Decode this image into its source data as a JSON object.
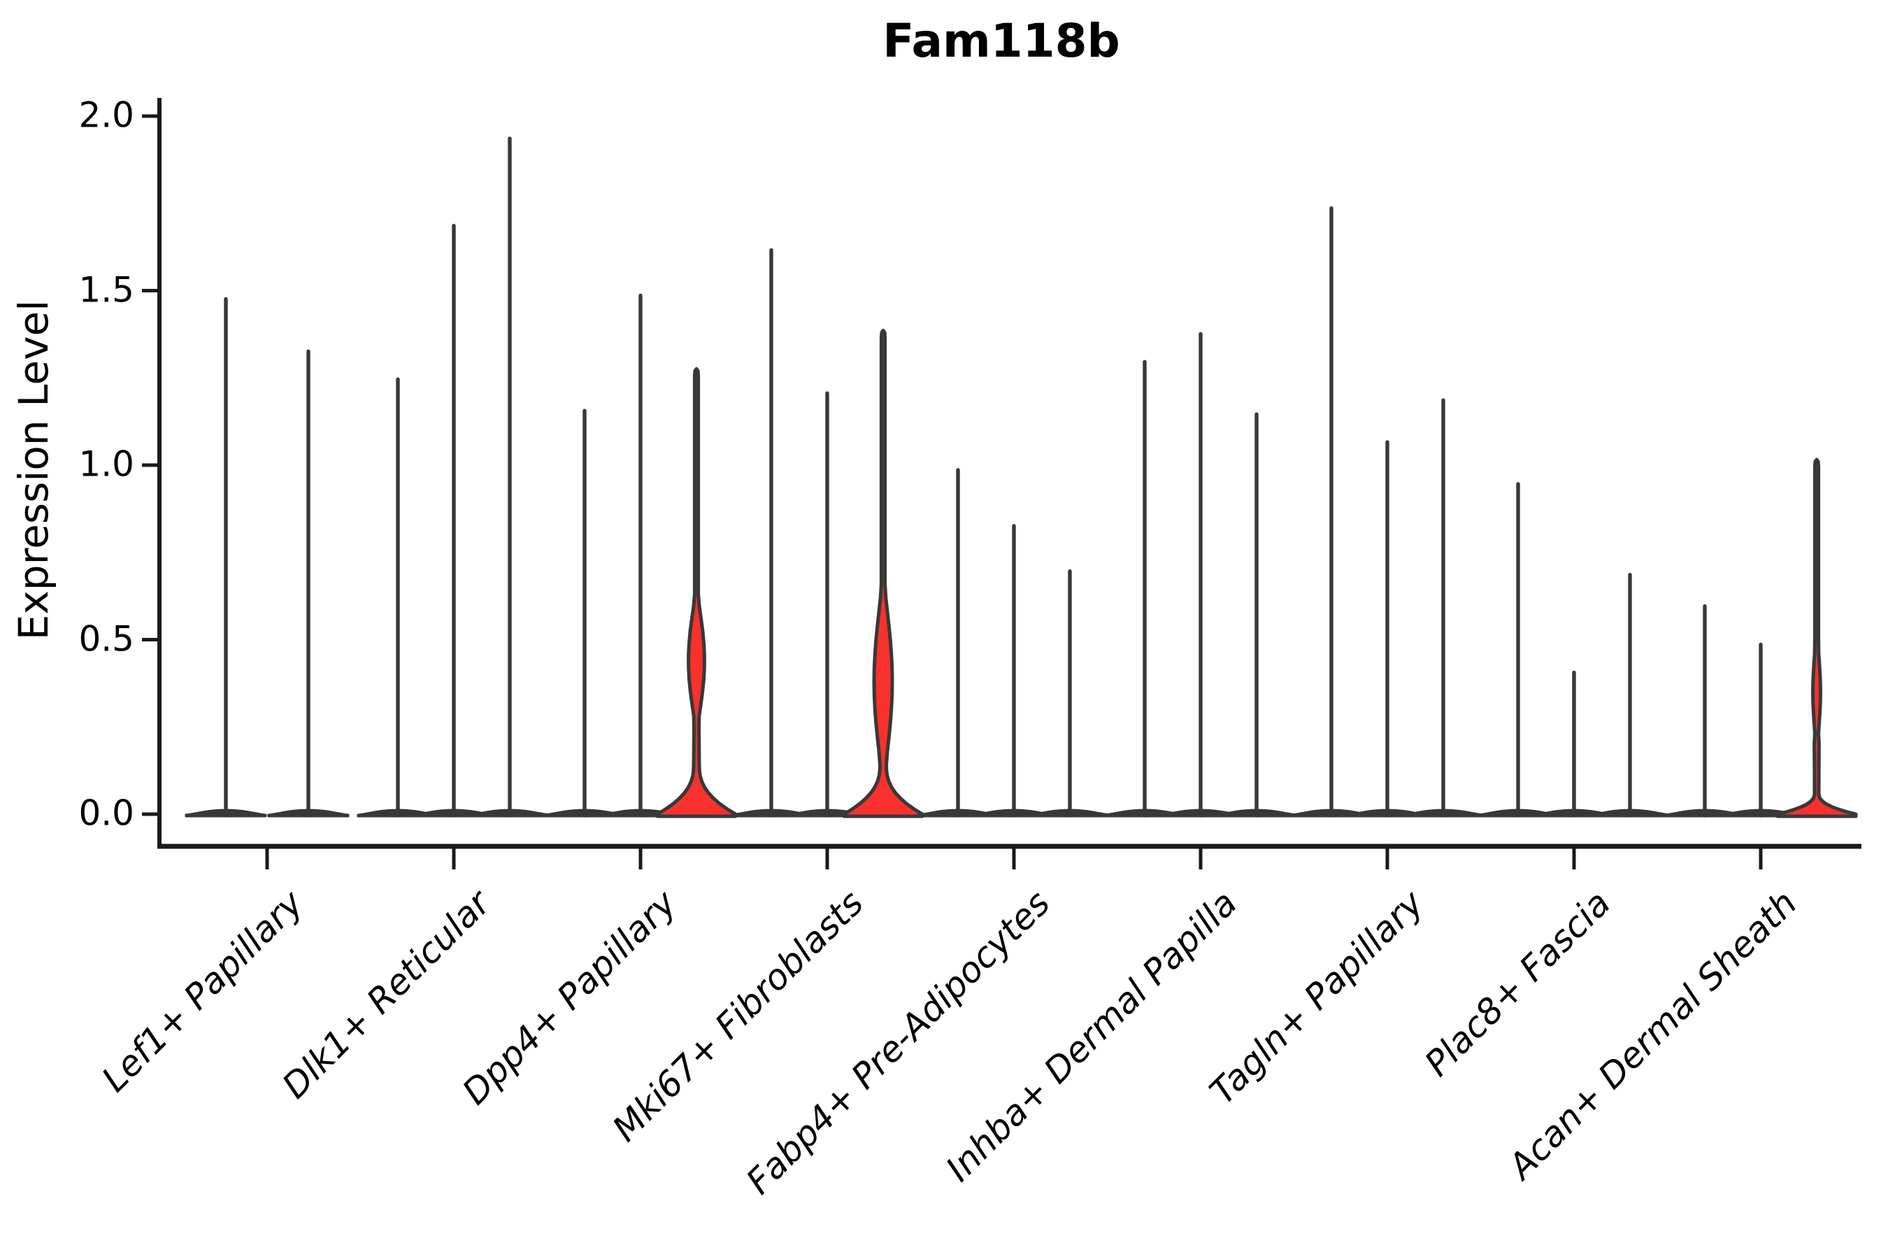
{
  "title": "Fam118b",
  "ylabel": "Expression Level",
  "colors": {
    "background": "#ffffff",
    "violin_fill_red": "#F8312C",
    "violin_stroke": "#383838",
    "axis_stroke": "#1a1a1a",
    "text": "#000000"
  },
  "chart_data": {
    "type": "violin",
    "title": "Fam118b",
    "xlabel": "",
    "ylabel": "Expression Level",
    "ylim": [
      0.0,
      2.0
    ],
    "yticks": [
      0.0,
      0.5,
      1.0,
      1.5,
      2.0
    ],
    "ytick_labels": [
      "0.0",
      "0.5",
      "1.0",
      "1.5",
      "2.0"
    ],
    "grid": false,
    "legend": "none",
    "categories": [
      "Lef1+ Papillary",
      "Dlk1+ Reticular",
      "Dpp4+ Papillary",
      "Mki67+ Fibroblasts",
      "Fabp4+ Pre-Adipocytes",
      "Inhba+ Dermal Papilla",
      "Tagln+ Papillary",
      "Plac8+ Fascia",
      "Acan+ Dermal Sheath"
    ],
    "groups": [
      {
        "category": "Lef1+ Papillary",
        "violins": [
          {
            "max": 1.48,
            "shape": "spike",
            "filled": false
          },
          {
            "max": 1.33,
            "shape": "spike",
            "filled": false
          }
        ]
      },
      {
        "category": "Dlk1+ Reticular",
        "violins": [
          {
            "max": 1.25,
            "shape": "spike",
            "filled": false
          },
          {
            "max": 1.69,
            "shape": "spike",
            "filled": false
          },
          {
            "max": 1.94,
            "shape": "spike",
            "filled": false
          }
        ]
      },
      {
        "category": "Dpp4+ Papillary",
        "violins": [
          {
            "max": 1.16,
            "shape": "spike",
            "filled": false
          },
          {
            "max": 1.49,
            "shape": "spike",
            "filled": false
          },
          {
            "max": 1.27,
            "shape": "body",
            "filled": true,
            "base_top": 0.14,
            "waist_hw": 4.0,
            "bulge": {
              "start": 0.27,
              "end": 0.63,
              "peak": 0.44,
              "halfwidth": 11.5
            }
          }
        ]
      },
      {
        "category": "Mki67+ Fibroblasts",
        "violins": [
          {
            "max": 1.62,
            "shape": "spike",
            "filled": false
          },
          {
            "max": 1.21,
            "shape": "spike",
            "filled": false
          },
          {
            "max": 1.38,
            "shape": "body",
            "filled": true,
            "base_top": 0.14,
            "waist_hw": 4.5,
            "bulge": {
              "start": 0.17,
              "end": 0.7,
              "peak": 0.38,
              "halfwidth": 13.0
            }
          }
        ]
      },
      {
        "category": "Fabp4+ Pre-Adipocytes",
        "violins": [
          {
            "max": 0.99,
            "shape": "spike",
            "filled": false
          },
          {
            "max": 0.83,
            "shape": "spike",
            "filled": false
          },
          {
            "max": 0.7,
            "shape": "spike",
            "filled": false
          }
        ]
      },
      {
        "category": "Inhba+ Dermal Papilla",
        "violins": [
          {
            "max": 1.3,
            "shape": "spike",
            "filled": false
          },
          {
            "max": 1.38,
            "shape": "spike",
            "filled": false
          },
          {
            "max": 1.15,
            "shape": "spike",
            "filled": false
          }
        ]
      },
      {
        "category": "Tagln+ Papillary",
        "violins": [
          {
            "max": 1.74,
            "shape": "spike",
            "filled": false
          },
          {
            "max": 1.07,
            "shape": "spike",
            "filled": false
          },
          {
            "max": 1.19,
            "shape": "spike",
            "filled": false
          }
        ]
      },
      {
        "category": "Plac8+ Fascia",
        "violins": [
          {
            "max": 0.95,
            "shape": "spike",
            "filled": false
          },
          {
            "max": 0.41,
            "shape": "spike",
            "filled": false
          },
          {
            "max": 0.69,
            "shape": "spike",
            "filled": false
          }
        ]
      },
      {
        "category": "Acan+ Dermal Sheath",
        "violins": [
          {
            "max": 0.6,
            "shape": "spike",
            "filled": false
          },
          {
            "max": 0.49,
            "shape": "spike",
            "filled": false
          },
          {
            "max": 1.01,
            "shape": "small-body",
            "filled": true,
            "base_top": 0.06,
            "waist_hw": 3.0,
            "bulge": {
              "start": 0.22,
              "end": 0.46,
              "peak": 0.35,
              "halfwidth": 5.5
            }
          }
        ]
      }
    ]
  }
}
